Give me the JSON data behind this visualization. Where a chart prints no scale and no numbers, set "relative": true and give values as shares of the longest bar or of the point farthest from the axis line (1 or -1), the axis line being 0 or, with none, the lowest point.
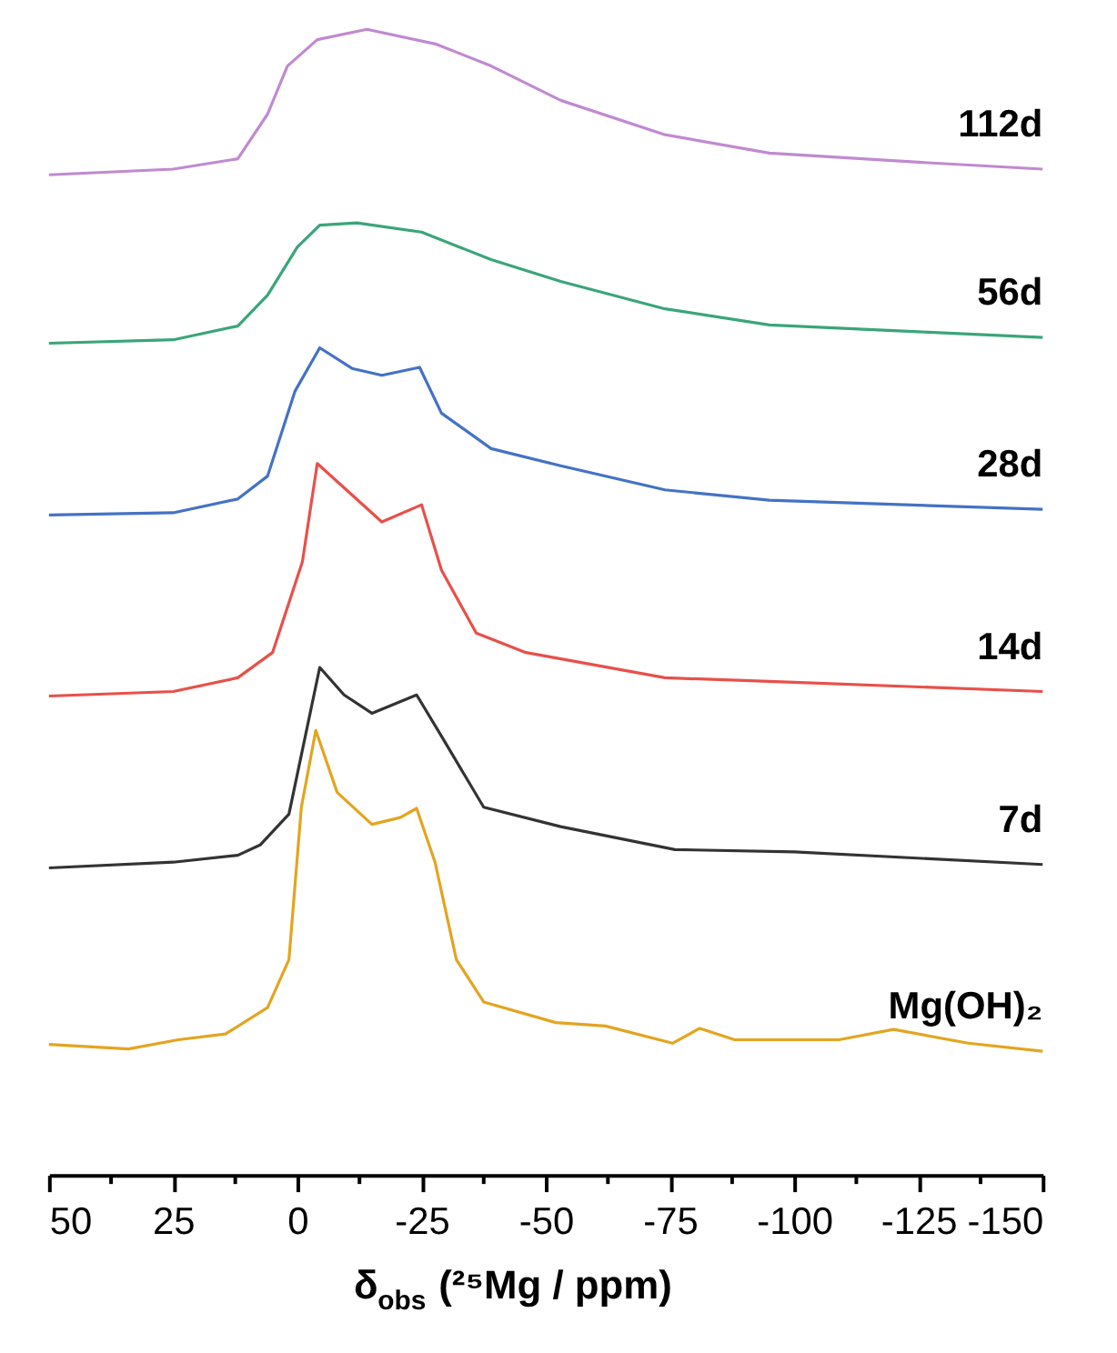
{
  "chart_data": {
    "type": "line",
    "relative": true,
    "xlabel": "δ$_{obs}$ (²⁵Mg / ppm)",
    "xlim": [
      50,
      -150
    ],
    "xticks": [
      50,
      {
        "value": 37.5,
        "label": null
      },
      25,
      {
        "value": 12.5,
        "label": null
      },
      0,
      {
        "value": -12.5,
        "label": null
      },
      -25,
      {
        "value": -37.5,
        "label": null
      },
      -50,
      {
        "value": -62.5,
        "label": null
      },
      -75,
      {
        "value": -87.5,
        "label": null
      },
      -100,
      {
        "value": -112.5,
        "label": null
      },
      -125,
      {
        "value": -137.5,
        "label": null
      },
      -150
    ],
    "grid": false,
    "legend": false,
    "line_style": "solid",
    "marker": "none",
    "series": [
      {
        "name": "112d",
        "color": "#c08ad0",
        "x": [
          50,
          25,
          12,
          6,
          2,
          -4,
          -14,
          -28,
          -39,
          -53,
          -74,
          -95,
          -125,
          -150
        ],
        "values": [
          0.873,
          0.878,
          0.887,
          0.926,
          0.968,
          0.991,
          1.0,
          0.987,
          0.968,
          0.938,
          0.908,
          0.892,
          0.884,
          0.878
        ]
      },
      {
        "name": "56d",
        "color": "#3aa57a",
        "x": [
          50,
          25,
          12,
          6,
          0,
          -4.5,
          -12,
          -25,
          -39,
          -53,
          -74,
          -95,
          -125,
          -150
        ],
        "values": [
          0.726,
          0.729,
          0.741,
          0.768,
          0.81,
          0.829,
          0.831,
          0.823,
          0.799,
          0.78,
          0.756,
          0.742,
          0.736,
          0.731
        ]
      },
      {
        "name": "28d",
        "color": "#4472c4",
        "x": [
          50,
          25,
          12,
          6,
          0.5,
          -4.5,
          -11,
          -17,
          -24.6,
          -29,
          -39,
          -53,
          -74,
          -95,
          -150
        ],
        "values": [
          0.576,
          0.578,
          0.59,
          0.61,
          0.684,
          0.722,
          0.704,
          0.698,
          0.705,
          0.665,
          0.634,
          0.619,
          0.598,
          0.589,
          0.581
        ]
      },
      {
        "name": "14d",
        "color": "#e8504a",
        "x": [
          50,
          25,
          12,
          5,
          -1,
          -4,
          -17,
          -25,
          -29,
          -36,
          -46,
          -74,
          -100,
          -150
        ],
        "values": [
          0.418,
          0.422,
          0.434,
          0.456,
          0.535,
          0.621,
          0.57,
          0.585,
          0.528,
          0.473,
          0.456,
          0.434,
          0.43,
          0.422
        ]
      },
      {
        "name": "7d",
        "color": "#333333",
        "x": [
          50,
          25,
          12,
          7.5,
          1.7,
          -4.5,
          -9.4,
          -15,
          -24,
          -29,
          -37.5,
          -53,
          -76,
          -100,
          -150
        ],
        "values": [
          0.268,
          0.273,
          0.279,
          0.288,
          0.315,
          0.443,
          0.419,
          0.403,
          0.419,
          0.383,
          0.321,
          0.304,
          0.284,
          0.282,
          0.271
        ]
      },
      {
        "name": "Mg(OH)₂",
        "color": "#e3a520",
        "x": [
          50,
          34,
          24,
          14.5,
          6,
          1.7,
          -0.8,
          -3.7,
          -8,
          -15,
          -20.7,
          -24,
          -27.7,
          -32,
          -37.5,
          -52,
          -62,
          -75.5,
          -81,
          -88,
          -109,
          -120,
          -135,
          -150
        ],
        "values": [
          0.114,
          0.11,
          0.118,
          0.123,
          0.146,
          0.188,
          0.321,
          0.388,
          0.334,
          0.306,
          0.312,
          0.32,
          0.273,
          0.188,
          0.151,
          0.133,
          0.13,
          0.115,
          0.128,
          0.118,
          0.118,
          0.127,
          0.115,
          0.108
        ]
      }
    ]
  }
}
